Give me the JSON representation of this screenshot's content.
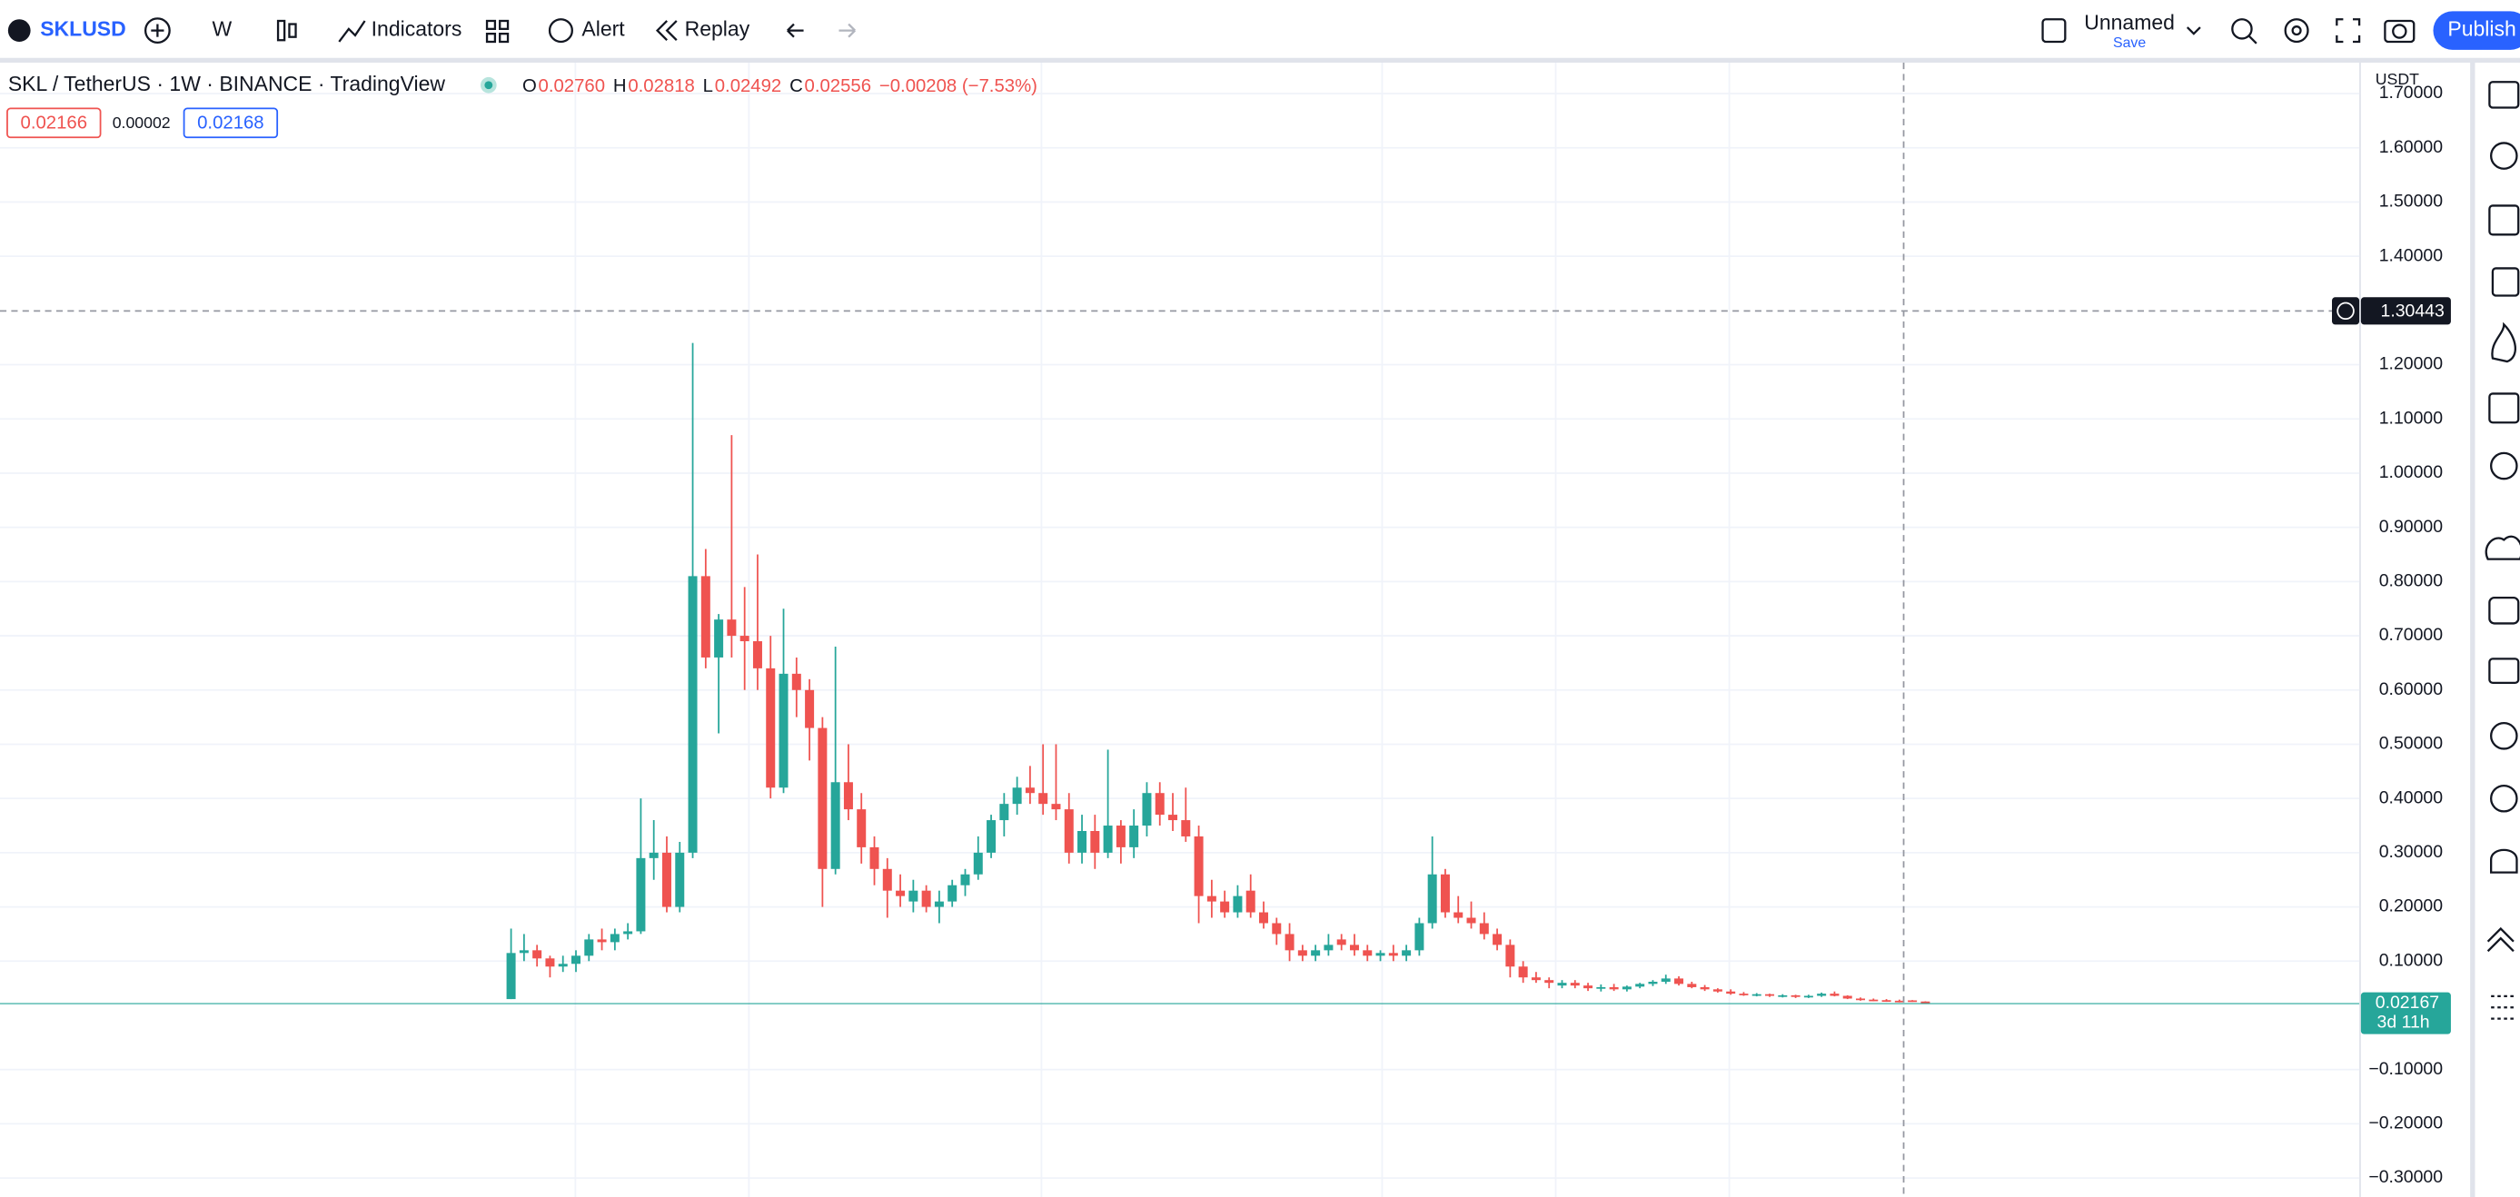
{
  "toolbar": {
    "symbol": "SKLUSD",
    "interval": "W",
    "indicators": "Indicators",
    "alert": "Alert",
    "replay": "Replay",
    "layout_name": "Unnamed",
    "save": "Save",
    "publish": "Publish"
  },
  "chart_data": {
    "type": "candlestick",
    "title": "SKL / TetherUS · 1W · BINANCE · TradingView",
    "legend": [
      {
        "key": "O",
        "text": "0.02760"
      },
      {
        "key": "H",
        "text": "0.02818"
      },
      {
        "key": "L",
        "text": "0.02492"
      },
      {
        "key": "C",
        "text": "0.02556"
      }
    ],
    "change": "−0.00208 (−7.53%)",
    "quote": {
      "bid": "0.02166",
      "spread": "0.00002",
      "ask": "0.02168"
    },
    "currency": "USDT",
    "crosshair_price": "1.30443",
    "last_price": "0.02167",
    "countdown": "3d 11h",
    "up_color": "#26a69a",
    "down_color": "#ef5350",
    "ylim": [
      -0.335,
      1.757
    ],
    "yticks": [
      {
        "value": -0.3,
        "label": "−0.30000"
      },
      {
        "value": -0.2,
        "label": "−0.20000"
      },
      {
        "value": -0.1,
        "label": "−0.10000"
      },
      {
        "value": 0.1,
        "label": "0.10000"
      },
      {
        "value": 0.2,
        "label": "0.20000"
      },
      {
        "value": 0.3,
        "label": "0.30000"
      },
      {
        "value": 0.4,
        "label": "0.40000"
      },
      {
        "value": 0.5,
        "label": "0.50000"
      },
      {
        "value": 0.6,
        "label": "0.60000"
      },
      {
        "value": 0.7,
        "label": "0.70000"
      },
      {
        "value": 0.8,
        "label": "0.80000"
      },
      {
        "value": 0.9,
        "label": "0.90000"
      },
      {
        "value": 1.0,
        "label": "1.00000"
      },
      {
        "value": 1.1,
        "label": "1.10000"
      },
      {
        "value": 1.2,
        "label": "1.20000"
      },
      {
        "value": 1.4,
        "label": "1.40000"
      },
      {
        "value": 1.5,
        "label": "1.50000"
      },
      {
        "value": 1.6,
        "label": "1.60000"
      },
      {
        "value": 1.7,
        "label": "1.70000"
      }
    ],
    "grid": true,
    "open": [
      0.03,
      0.115,
      0.12,
      0.105,
      0.09,
      0.095,
      0.11,
      0.14,
      0.135,
      0.15,
      0.155,
      0.29,
      0.3,
      0.2,
      0.3,
      0.81,
      0.66,
      0.73,
      0.7,
      0.69,
      0.64,
      0.42,
      0.63,
      0.6,
      0.53,
      0.27,
      0.43,
      0.38,
      0.31,
      0.27,
      0.23,
      0.21,
      0.23,
      0.2,
      0.21,
      0.24,
      0.26,
      0.3,
      0.36,
      0.39,
      0.42,
      0.41,
      0.39,
      0.38,
      0.3,
      0.34,
      0.3,
      0.35,
      0.31,
      0.35,
      0.41,
      0.37,
      0.36,
      0.33,
      0.22,
      0.21,
      0.19,
      0.23,
      0.19,
      0.17,
      0.15,
      0.12,
      0.11,
      0.12,
      0.14,
      0.13,
      0.12,
      0.11,
      0.115,
      0.11,
      0.12,
      0.17,
      0.26,
      0.19,
      0.18,
      0.17,
      0.15,
      0.13,
      0.09,
      0.07,
      0.065,
      0.055,
      0.06,
      0.055,
      0.05,
      0.052,
      0.048,
      0.053,
      0.058,
      0.062,
      0.068,
      0.058,
      0.052,
      0.048,
      0.044,
      0.04,
      0.038,
      0.039,
      0.036,
      0.037,
      0.034,
      0.036,
      0.04,
      0.036,
      0.031,
      0.029,
      0.028,
      0.027,
      0.0276,
      0.02556
    ],
    "high": [
      0.16,
      0.15,
      0.13,
      0.11,
      0.11,
      0.12,
      0.15,
      0.16,
      0.16,
      0.17,
      0.4,
      0.36,
      0.33,
      0.32,
      1.24,
      0.86,
      0.74,
      1.07,
      0.79,
      0.85,
      0.7,
      0.75,
      0.66,
      0.62,
      0.55,
      0.68,
      0.5,
      0.41,
      0.33,
      0.29,
      0.26,
      0.25,
      0.24,
      0.23,
      0.25,
      0.27,
      0.33,
      0.37,
      0.41,
      0.44,
      0.46,
      0.5,
      0.5,
      0.41,
      0.37,
      0.37,
      0.49,
      0.36,
      0.38,
      0.43,
      0.43,
      0.41,
      0.42,
      0.35,
      0.25,
      0.23,
      0.24,
      0.26,
      0.21,
      0.18,
      0.17,
      0.13,
      0.13,
      0.15,
      0.15,
      0.15,
      0.13,
      0.12,
      0.13,
      0.13,
      0.18,
      0.33,
      0.27,
      0.22,
      0.21,
      0.19,
      0.16,
      0.14,
      0.1,
      0.08,
      0.07,
      0.065,
      0.065,
      0.06,
      0.057,
      0.058,
      0.055,
      0.06,
      0.065,
      0.075,
      0.072,
      0.062,
      0.056,
      0.05,
      0.048,
      0.043,
      0.041,
      0.04,
      0.039,
      0.038,
      0.038,
      0.042,
      0.044,
      0.037,
      0.033,
      0.031,
      0.03,
      0.029,
      0.02818,
      0.026
    ],
    "low": [
      0.03,
      0.1,
      0.09,
      0.07,
      0.08,
      0.08,
      0.1,
      0.12,
      0.12,
      0.14,
      0.15,
      0.25,
      0.19,
      0.19,
      0.29,
      0.64,
      0.52,
      0.66,
      0.6,
      0.6,
      0.4,
      0.41,
      0.55,
      0.47,
      0.2,
      0.26,
      0.36,
      0.28,
      0.24,
      0.18,
      0.2,
      0.19,
      0.19,
      0.17,
      0.2,
      0.22,
      0.25,
      0.29,
      0.33,
      0.37,
      0.39,
      0.37,
      0.36,
      0.28,
      0.28,
      0.27,
      0.29,
      0.28,
      0.29,
      0.33,
      0.35,
      0.34,
      0.32,
      0.17,
      0.18,
      0.18,
      0.18,
      0.18,
      0.16,
      0.13,
      0.1,
      0.1,
      0.1,
      0.11,
      0.12,
      0.11,
      0.1,
      0.1,
      0.1,
      0.1,
      0.11,
      0.16,
      0.18,
      0.17,
      0.16,
      0.14,
      0.12,
      0.07,
      0.06,
      0.06,
      0.05,
      0.05,
      0.05,
      0.045,
      0.044,
      0.045,
      0.044,
      0.05,
      0.054,
      0.058,
      0.055,
      0.05,
      0.045,
      0.042,
      0.038,
      0.036,
      0.035,
      0.034,
      0.033,
      0.032,
      0.032,
      0.034,
      0.035,
      0.03,
      0.027,
      0.026,
      0.025,
      0.024,
      0.02492,
      0.021
    ],
    "close": [
      0.115,
      0.12,
      0.105,
      0.09,
      0.095,
      0.11,
      0.14,
      0.135,
      0.15,
      0.155,
      0.29,
      0.3,
      0.2,
      0.3,
      0.81,
      0.66,
      0.73,
      0.7,
      0.69,
      0.64,
      0.42,
      0.63,
      0.6,
      0.53,
      0.27,
      0.43,
      0.38,
      0.31,
      0.27,
      0.23,
      0.22,
      0.23,
      0.2,
      0.21,
      0.24,
      0.26,
      0.3,
      0.36,
      0.39,
      0.42,
      0.41,
      0.39,
      0.38,
      0.3,
      0.34,
      0.3,
      0.35,
      0.31,
      0.35,
      0.41,
      0.37,
      0.36,
      0.33,
      0.22,
      0.21,
      0.19,
      0.22,
      0.19,
      0.17,
      0.15,
      0.12,
      0.11,
      0.12,
      0.13,
      0.13,
      0.12,
      0.11,
      0.115,
      0.11,
      0.12,
      0.17,
      0.26,
      0.19,
      0.18,
      0.17,
      0.15,
      0.13,
      0.09,
      0.07,
      0.065,
      0.06,
      0.06,
      0.055,
      0.05,
      0.052,
      0.048,
      0.053,
      0.058,
      0.062,
      0.068,
      0.058,
      0.052,
      0.048,
      0.044,
      0.04,
      0.038,
      0.039,
      0.036,
      0.037,
      0.034,
      0.036,
      0.04,
      0.036,
      0.031,
      0.029,
      0.028,
      0.027,
      0.026,
      0.02556,
      0.02167
    ]
  }
}
